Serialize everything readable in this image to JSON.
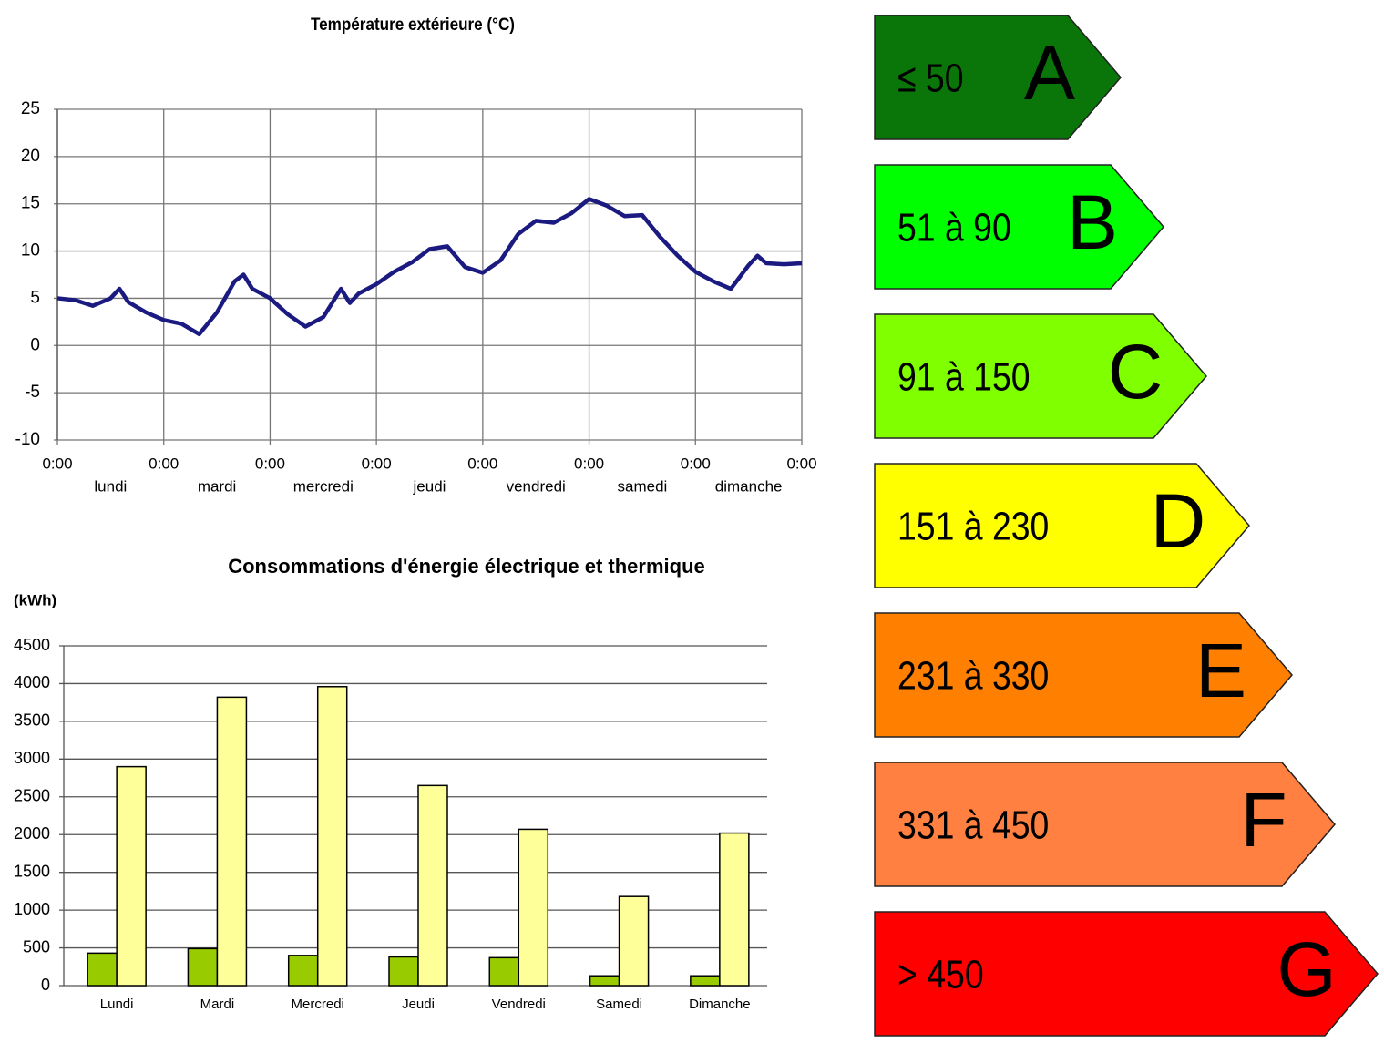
{
  "chart_data": [
    {
      "type": "line",
      "title": "Température extérieure (°C)",
      "x": [
        0,
        4,
        8,
        12,
        14,
        16,
        20,
        24,
        28,
        32,
        36,
        40,
        42,
        44,
        48,
        52,
        56,
        60,
        64,
        66,
        68,
        72,
        76,
        80,
        84,
        88,
        92,
        96,
        100,
        104,
        108,
        112,
        116,
        120,
        124,
        128,
        132,
        136,
        140,
        144,
        148,
        152,
        156,
        158,
        160,
        164,
        168
      ],
      "series": [
        {
          "color": "#1a1a80",
          "values": [
            5,
            4.8,
            4.2,
            5.0,
            6.0,
            4.6,
            3.5,
            2.7,
            2.3,
            1.2,
            3.5,
            6.8,
            7.5,
            6.0,
            5.0,
            3.3,
            2.0,
            3.0,
            6.0,
            4.5,
            5.5,
            6.5,
            7.8,
            8.8,
            10.2,
            10.5,
            8.3,
            7.7,
            9.0,
            11.8,
            13.2,
            13.0,
            14.0,
            15.5,
            14.8,
            13.7,
            13.8,
            11.5,
            9.5,
            7.8,
            6.8,
            6.0,
            8.5,
            9.5,
            8.7,
            8.6,
            8.7
          ]
        }
      ],
      "xlim": [
        0,
        168
      ],
      "xticks": [
        {
          "value": 0,
          "label": "0:00"
        },
        {
          "value": 24,
          "label": "0:00"
        },
        {
          "value": 48,
          "label": "0:00"
        },
        {
          "value": 72,
          "label": "0:00"
        },
        {
          "value": 96,
          "label": "0:00"
        },
        {
          "value": 120,
          "label": "0:00"
        },
        {
          "value": 144,
          "label": "0:00"
        },
        {
          "value": 168,
          "label": "0:00"
        }
      ],
      "day_labels": [
        "lundi",
        "mardi",
        "mercredi",
        "jeudi",
        "vendredi",
        "samedi",
        "dimanche"
      ],
      "ylim": [
        -10,
        25
      ],
      "yticks": [
        -10,
        -5,
        0,
        5,
        10,
        15,
        20,
        25
      ],
      "grid": true
    },
    {
      "type": "bar",
      "title": "Consommations d'énergie électrique et thermique",
      "y_label": "(kWh)",
      "categories": [
        "Lundi",
        "Mardi",
        "Mercredi",
        "Jeudi",
        "Vendredi",
        "Samedi",
        "Dimanche"
      ],
      "series": [
        {
          "color": "#99cc00",
          "values": [
            430,
            490,
            400,
            380,
            370,
            130,
            130
          ]
        },
        {
          "color": "#ffff99",
          "values": [
            2900,
            3820,
            3960,
            2650,
            2070,
            1180,
            2020
          ]
        }
      ],
      "ylim": [
        0,
        4500
      ],
      "yticks": [
        0,
        500,
        1000,
        1500,
        2000,
        2500,
        3000,
        3500,
        4000,
        4500
      ],
      "grid": true
    }
  ],
  "energy_labels": [
    {
      "range": "≤ 50",
      "letter": "A",
      "color": "#0a760a"
    },
    {
      "range": "51 à 90",
      "letter": "B",
      "color": "#00ff00"
    },
    {
      "range": "91 à 150",
      "letter": "C",
      "color": "#80ff00"
    },
    {
      "range": "151 à 230",
      "letter": "D",
      "color": "#ffff00"
    },
    {
      "range": "231 à 330",
      "letter": "E",
      "color": "#ff8000"
    },
    {
      "range": "331 à 450",
      "letter": "F",
      "color": "#ff8040"
    },
    {
      "range": "> 450",
      "letter": "G",
      "color": "#ff0000"
    }
  ]
}
